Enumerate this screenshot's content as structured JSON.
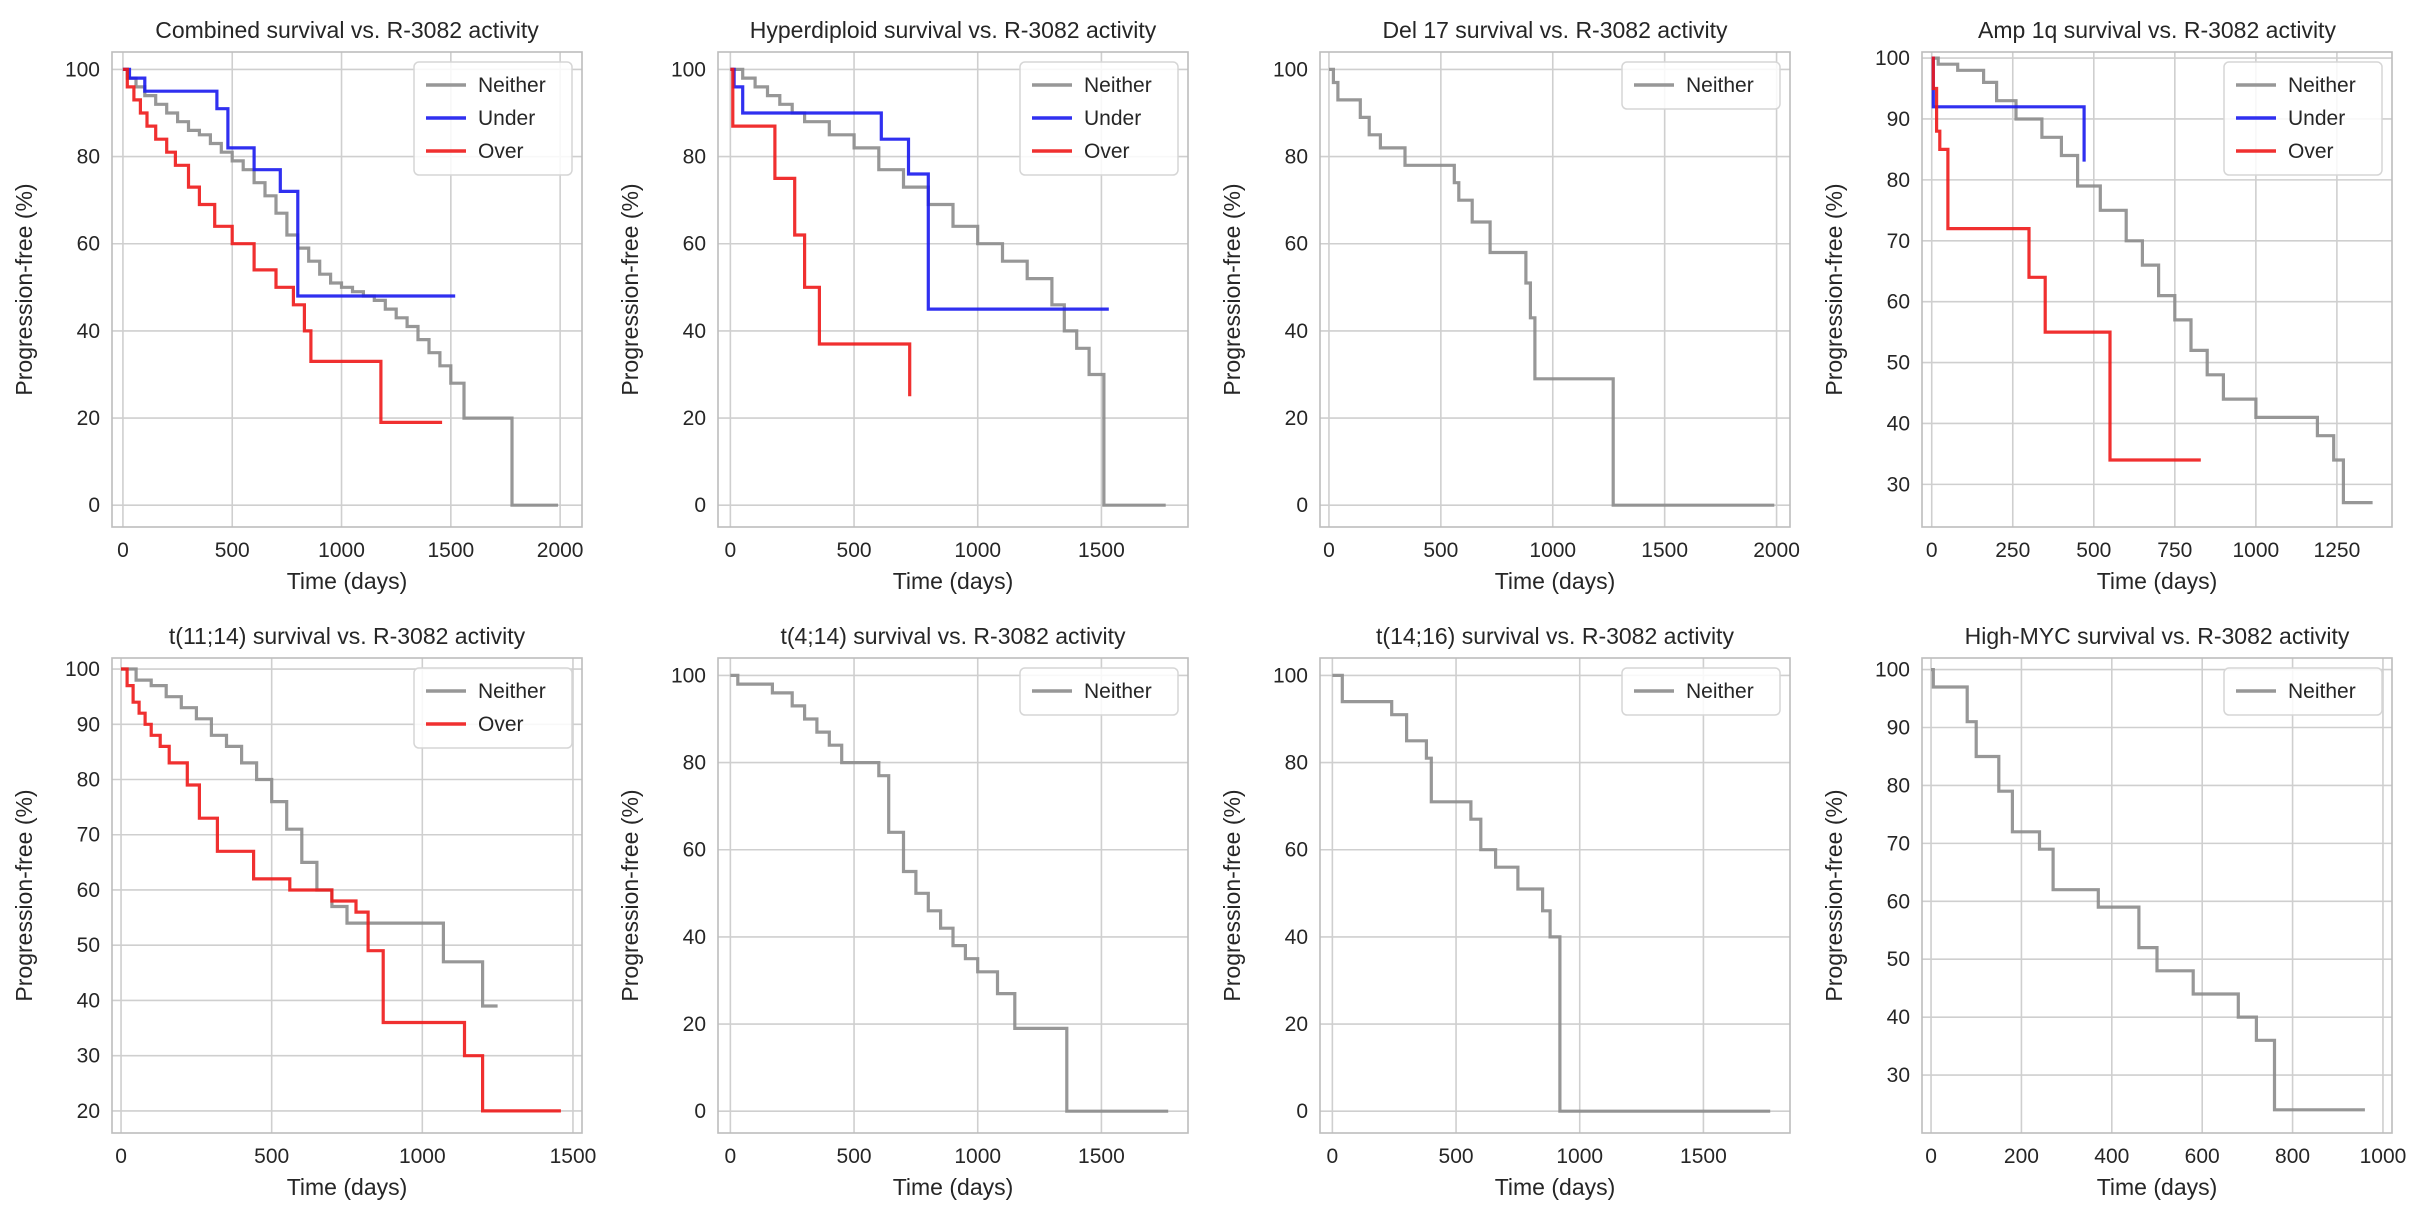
{
  "colors": {
    "Neither": "#8c8c8c",
    "Under": "#1a1aee",
    "Over": "#ee1a1a",
    "grid": "#cfcfcf",
    "spine": "#bdbdbd",
    "text": "#262626"
  },
  "chart_data": [
    {
      "type": "line",
      "title": "Combined survival vs. R-3082 activity",
      "xlabel": "Time (days)",
      "ylabel": "Progression-free (%)",
      "xlim": [
        -50,
        2100
      ],
      "ylim": [
        -5,
        104
      ],
      "xticks": [
        0,
        500,
        1000,
        1500,
        2000
      ],
      "yticks": [
        0,
        20,
        40,
        60,
        80,
        100
      ],
      "grid": true,
      "legend": "top-right",
      "series": [
        {
          "name": "Neither",
          "x": [
            0,
            20,
            60,
            100,
            150,
            200,
            250,
            300,
            350,
            400,
            450,
            500,
            550,
            600,
            650,
            700,
            750,
            800,
            850,
            900,
            950,
            1000,
            1050,
            1100,
            1150,
            1200,
            1250,
            1300,
            1350,
            1400,
            1450,
            1500,
            1560,
            1760,
            1780,
            1990
          ],
          "y": [
            100,
            98,
            96,
            94,
            92,
            90,
            88,
            86,
            85,
            83,
            81,
            79,
            77,
            74,
            71,
            67,
            62,
            59,
            56,
            53,
            51,
            50,
            49,
            48,
            47,
            45,
            43,
            41,
            38,
            35,
            32,
            28,
            20,
            20,
            0,
            0
          ]
        },
        {
          "name": "Under",
          "x": [
            0,
            30,
            100,
            380,
            430,
            480,
            600,
            720,
            800,
            1520
          ],
          "y": [
            100,
            98,
            95,
            95,
            91,
            82,
            77,
            72,
            48,
            48
          ]
        },
        {
          "name": "Over",
          "x": [
            0,
            20,
            50,
            80,
            110,
            150,
            200,
            240,
            300,
            350,
            420,
            500,
            600,
            700,
            780,
            830,
            860,
            1000,
            1150,
            1180,
            1460
          ],
          "y": [
            100,
            96,
            93,
            90,
            87,
            84,
            81,
            78,
            73,
            69,
            64,
            60,
            54,
            50,
            46,
            40,
            33,
            33,
            33,
            19,
            19
          ]
        }
      ]
    },
    {
      "type": "line",
      "title": "Hyperdiploid survival vs. R-3082 activity",
      "xlabel": "Time (days)",
      "ylabel": "Progression-free (%)",
      "xlim": [
        -50,
        1850
      ],
      "ylim": [
        -5,
        104
      ],
      "xticks": [
        0,
        500,
        1000,
        1500
      ],
      "yticks": [
        0,
        20,
        40,
        60,
        80,
        100
      ],
      "grid": true,
      "legend": "top-right",
      "series": [
        {
          "name": "Neither",
          "x": [
            0,
            50,
            100,
            150,
            200,
            250,
            300,
            400,
            500,
            600,
            700,
            800,
            900,
            1000,
            1100,
            1200,
            1300,
            1350,
            1400,
            1450,
            1500,
            1510,
            1760
          ],
          "y": [
            100,
            98,
            96,
            94,
            92,
            90,
            88,
            85,
            82,
            77,
            73,
            69,
            64,
            60,
            56,
            52,
            46,
            40,
            36,
            30,
            30,
            0,
            0
          ]
        },
        {
          "name": "Under",
          "x": [
            0,
            15,
            50,
            480,
            610,
            720,
            800,
            1530
          ],
          "y": [
            100,
            96,
            90,
            90,
            84,
            76,
            45,
            45
          ]
        },
        {
          "name": "Over",
          "x": [
            0,
            10,
            180,
            260,
            300,
            360,
            720,
            725
          ],
          "y": [
            100,
            87,
            75,
            62,
            50,
            37,
            37,
            25
          ]
        }
      ]
    },
    {
      "type": "line",
      "title": "Del 17 survival vs. R-3082 activity",
      "xlabel": "Time (days)",
      "ylabel": "Progression-free (%)",
      "xlim": [
        -40,
        2060
      ],
      "ylim": [
        -5,
        104
      ],
      "xticks": [
        0,
        500,
        1000,
        1500,
        2000
      ],
      "yticks": [
        0,
        20,
        40,
        60,
        80,
        100
      ],
      "grid": true,
      "legend": "top-right",
      "series": [
        {
          "name": "Neither",
          "x": [
            0,
            20,
            40,
            140,
            180,
            230,
            340,
            560,
            580,
            640,
            720,
            880,
            900,
            920,
            1250,
            1270,
            1990
          ],
          "y": [
            100,
            97,
            93,
            89,
            85,
            82,
            78,
            74,
            70,
            65,
            58,
            51,
            43,
            29,
            29,
            0,
            0
          ]
        }
      ]
    },
    {
      "type": "line",
      "title": "Amp 1q survival vs. R-3082 activity",
      "xlabel": "Time (days)",
      "ylabel": "Progression-free (%)",
      "xlim": [
        -30,
        1420
      ],
      "ylim": [
        23,
        101
      ],
      "xticks": [
        0,
        250,
        500,
        750,
        1000,
        1250
      ],
      "yticks": [
        30,
        40,
        50,
        60,
        70,
        80,
        90,
        100
      ],
      "grid": true,
      "legend": "top-right",
      "series": [
        {
          "name": "Neither",
          "x": [
            0,
            20,
            80,
            160,
            200,
            260,
            340,
            400,
            450,
            520,
            600,
            650,
            700,
            750,
            800,
            850,
            900,
            1000,
            1190,
            1240,
            1270,
            1360
          ],
          "y": [
            100,
            99,
            98,
            96,
            93,
            90,
            87,
            84,
            79,
            75,
            70,
            66,
            61,
            57,
            52,
            48,
            44,
            41,
            38,
            34,
            27,
            27
          ]
        },
        {
          "name": "Under",
          "x": [
            0,
            5,
            450,
            470
          ],
          "y": [
            100,
            92,
            92,
            83
          ]
        },
        {
          "name": "Over",
          "x": [
            0,
            5,
            15,
            25,
            50,
            250,
            300,
            350,
            510,
            550,
            830
          ],
          "y": [
            100,
            95,
            88,
            85,
            72,
            72,
            64,
            55,
            55,
            34,
            34
          ]
        }
      ]
    },
    {
      "type": "line",
      "title": "t(11;14) survival vs. R-3082 activity",
      "xlabel": "Time (days)",
      "ylabel": "Progression-free (%)",
      "xlim": [
        -30,
        1530
      ],
      "ylim": [
        16,
        102
      ],
      "xticks": [
        0,
        500,
        1000,
        1500
      ],
      "yticks": [
        20,
        30,
        40,
        50,
        60,
        70,
        80,
        90,
        100
      ],
      "grid": true,
      "legend": "top-right",
      "series": [
        {
          "name": "Neither",
          "x": [
            0,
            50,
            100,
            150,
            200,
            250,
            300,
            350,
            400,
            450,
            500,
            550,
            600,
            650,
            700,
            750,
            1050,
            1070,
            1200,
            1250
          ],
          "y": [
            100,
            98,
            97,
            95,
            93,
            91,
            88,
            86,
            83,
            80,
            76,
            71,
            65,
            60,
            57,
            54,
            54,
            47,
            39,
            39
          ]
        },
        {
          "name": "Over",
          "x": [
            0,
            20,
            40,
            60,
            80,
            100,
            130,
            160,
            220,
            260,
            320,
            440,
            560,
            700,
            780,
            820,
            870,
            1100,
            1140,
            1200,
            1460
          ],
          "y": [
            100,
            97,
            94,
            92,
            90,
            88,
            86,
            83,
            79,
            73,
            67,
            62,
            60,
            58,
            56,
            49,
            36,
            36,
            30,
            20,
            20
          ]
        }
      ]
    },
    {
      "type": "line",
      "title": "t(4;14) survival vs. R-3082 activity",
      "xlabel": "Time (days)",
      "ylabel": "Progression-free (%)",
      "xlim": [
        -50,
        1850
      ],
      "ylim": [
        -5,
        104
      ],
      "xticks": [
        0,
        500,
        1000,
        1500
      ],
      "yticks": [
        0,
        20,
        40,
        60,
        80,
        100
      ],
      "grid": true,
      "legend": "top-right",
      "series": [
        {
          "name": "Neither",
          "x": [
            0,
            30,
            170,
            250,
            300,
            350,
            400,
            450,
            600,
            640,
            700,
            750,
            800,
            850,
            900,
            950,
            1000,
            1080,
            1150,
            1350,
            1360,
            1770
          ],
          "y": [
            100,
            98,
            96,
            93,
            90,
            87,
            84,
            80,
            77,
            64,
            55,
            50,
            46,
            42,
            38,
            35,
            32,
            27,
            19,
            19,
            0,
            0
          ]
        }
      ]
    },
    {
      "type": "line",
      "title": "t(14;16) survival vs. R-3082 activity",
      "xlabel": "Time (days)",
      "ylabel": "Progression-free (%)",
      "xlim": [
        -50,
        1850
      ],
      "ylim": [
        -5,
        104
      ],
      "xticks": [
        0,
        500,
        1000,
        1500
      ],
      "yticks": [
        0,
        20,
        40,
        60,
        80,
        100
      ],
      "grid": true,
      "legend": "top-right",
      "series": [
        {
          "name": "Neither",
          "x": [
            0,
            40,
            240,
            300,
            380,
            400,
            560,
            600,
            660,
            750,
            850,
            880,
            920,
            1770
          ],
          "y": [
            100,
            94,
            91,
            85,
            81,
            71,
            67,
            60,
            56,
            51,
            46,
            40,
            0,
            0
          ]
        }
      ]
    },
    {
      "type": "line",
      "title": "High-MYC survival vs. R-3082 activity",
      "xlabel": "Time (days)",
      "ylabel": "Progression-free (%)",
      "xlim": [
        -20,
        1020
      ],
      "ylim": [
        20,
        102
      ],
      "xticks": [
        0,
        200,
        400,
        600,
        800,
        1000
      ],
      "yticks": [
        30,
        40,
        50,
        60,
        70,
        80,
        90,
        100
      ],
      "grid": true,
      "legend": "top-right",
      "series": [
        {
          "name": "Neither",
          "x": [
            0,
            5,
            80,
            100,
            150,
            180,
            240,
            270,
            370,
            460,
            500,
            580,
            680,
            720,
            760,
            960
          ],
          "y": [
            100,
            97,
            91,
            85,
            79,
            72,
            69,
            62,
            59,
            52,
            48,
            44,
            40,
            36,
            24,
            24
          ]
        }
      ]
    }
  ]
}
